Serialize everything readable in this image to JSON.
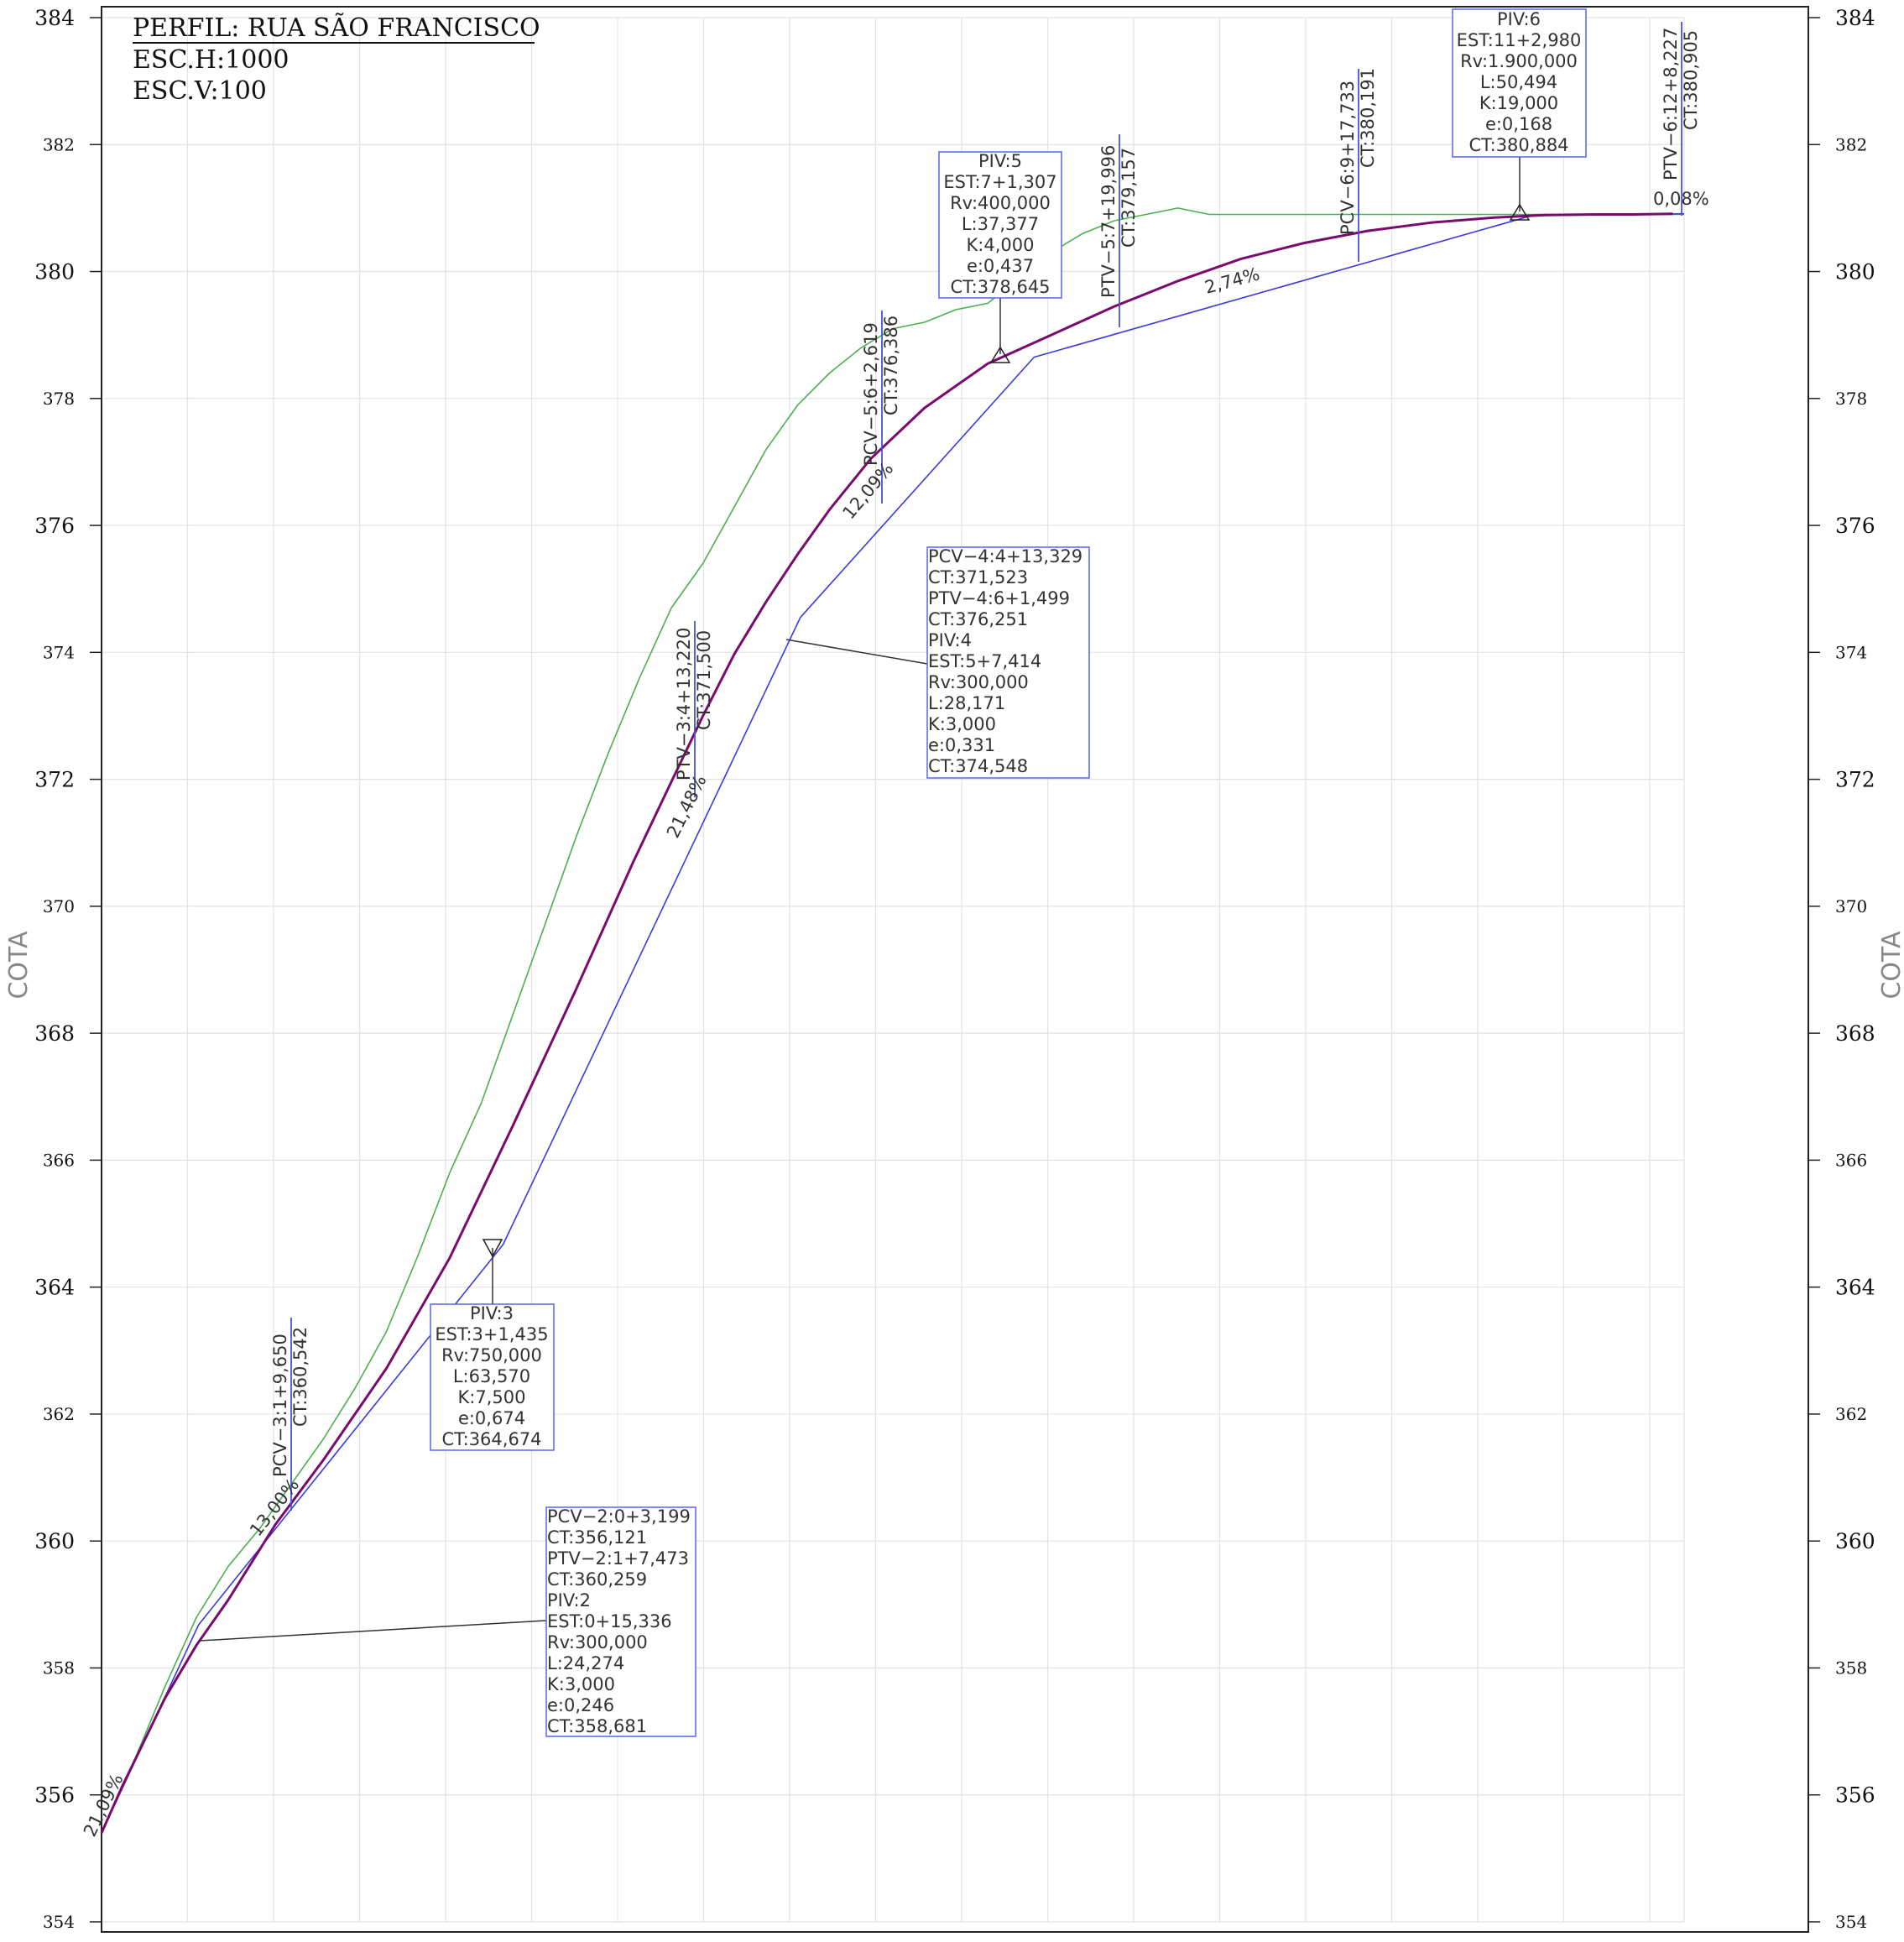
{
  "chart_data": {
    "type": "line",
    "title": "PERFIL: RUA SÃO FRANCISCO",
    "subtitle": [
      "ESC.H:1000",
      "ESC.V:100"
    ],
    "ylabel": "COTA",
    "ylim": [
      354,
      384
    ],
    "xlim": [
      0,
      250
    ],
    "yticks": [
      "354",
      "356",
      "358",
      "360",
      "362",
      "364",
      "366",
      "368",
      "370",
      "372",
      "374",
      "376",
      "378",
      "380",
      "382",
      "384"
    ],
    "grid": true,
    "series": [
      {
        "color": "#4caf50",
        "x": [
          0,
          5,
          10,
          15,
          20,
          25,
          30,
          35,
          40,
          45,
          50,
          55,
          60,
          65,
          70,
          75,
          80,
          85,
          90,
          95,
          100,
          105,
          110,
          115,
          120,
          125,
          130,
          135,
          140,
          145,
          150,
          155,
          160,
          165,
          170,
          175,
          180,
          185,
          190,
          195,
          200,
          205,
          210,
          215,
          220,
          225,
          230,
          235,
          240,
          245,
          250
        ],
        "y": [
          355.4,
          356.5,
          357.7,
          358.8,
          359.6,
          360.2,
          360.9,
          361.6,
          362.4,
          363.3,
          364.5,
          365.8,
          366.9,
          368.3,
          369.7,
          371.1,
          372.4,
          373.6,
          374.7,
          375.4,
          376.3,
          377.2,
          377.9,
          378.4,
          378.8,
          379.1,
          379.2,
          379.4,
          379.5,
          379.9,
          380.3,
          380.6,
          380.8,
          380.9,
          381.0,
          380.9,
          380.9,
          380.9,
          380.9,
          380.9,
          380.9,
          380.9,
          380.9,
          380.9,
          380.9,
          380.9,
          380.9,
          380.9,
          380.9,
          380.9,
          380.9
        ]
      },
      {
        "color": "#3a3ae0",
        "x": [
          0,
          15.34,
          63.43,
          110.39,
          147.31,
          225.88,
          250
        ],
        "y": [
          355.4,
          358.68,
          364.67,
          374.55,
          378.65,
          380.88,
          380.91
        ]
      },
      {
        "color": "#7b0a6e",
        "x": [
          0,
          3.2,
          10,
          15,
          20,
          27.47,
          35,
          45,
          55,
          65,
          75,
          84,
          90,
          95,
          100,
          105,
          110,
          115,
          121.5,
          130,
          140,
          150,
          160,
          170,
          180,
          190,
          200,
          210,
          220,
          228,
          236,
          242,
          248.2
        ],
        "y": [
          355.4,
          356.12,
          357.52,
          358.36,
          359.07,
          360.26,
          361.27,
          362.72,
          364.46,
          366.55,
          368.7,
          370.7,
          371.96,
          373.0,
          373.98,
          374.8,
          375.55,
          376.25,
          377.05,
          377.85,
          378.55,
          379.0,
          379.45,
          379.85,
          380.2,
          380.45,
          380.64,
          380.77,
          380.85,
          380.89,
          380.9,
          380.9,
          380.91
        ]
      }
    ],
    "annotations": {
      "title_lines": [
        "PERFIL: RUA SÃO FRANCISCO",
        "ESC.H:1000",
        "ESC.V:100"
      ],
      "boxes": [
        {
          "lines": [
            "PCV−2:0+3,199",
            "CT:356,121",
            "PTV−2:1+7,473",
            "CT:360,259",
            "PIV:2",
            "EST:0+15,336",
            "Rv:300,000",
            "L:24,274",
            "K:3,000",
            "e:0,246",
            "CT:358,681"
          ]
        },
        {
          "lines": [
            "PIV:3",
            "EST:3+1,435",
            "Rv:750,000",
            "L:63,570",
            "K:7,500",
            "e:0,674",
            "CT:364,674"
          ]
        },
        {
          "lines": [
            "PCV−4:4+13,329",
            "CT:371,523",
            "PTV−4:6+1,499",
            "CT:376,251",
            "PIV:4",
            "EST:5+7,414",
            "Rv:300,000",
            "L:28,171",
            "K:3,000",
            "e:0,331",
            "CT:374,548"
          ]
        },
        {
          "lines": [
            "PIV:5",
            "EST:7+1,307",
            "Rv:400,000",
            "L:37,377",
            "K:4,000",
            "e:0,437",
            "CT:378,645"
          ]
        },
        {
          "lines": [
            "PIV:6",
            "EST:11+2,980",
            "Rv:1.900,000",
            "L:50,494",
            "K:19,000",
            "e:0,168",
            "CT:380,884"
          ]
        }
      ],
      "vertical_labels": [
        {
          "a": "PCV−3:1+9,650",
          "b": "CT:360,542"
        },
        {
          "a": "PTV−3:4+13,220",
          "b": "CT:371,500"
        },
        {
          "a": "PCV−5:6+2,619",
          "b": "CT:376,386"
        },
        {
          "a": "PTV−5:7+19,996",
          "b": "CT:379,157"
        },
        {
          "a": "PCV−6:9+17,733",
          "b": "CT:380,191"
        },
        {
          "a": "PTV−6:12+8,227",
          "b": "CT:380,905"
        }
      ],
      "grades": [
        "21,09%",
        "13,00%",
        "21,48%",
        "12,09%",
        "2,74%",
        "0,08%"
      ]
    }
  }
}
